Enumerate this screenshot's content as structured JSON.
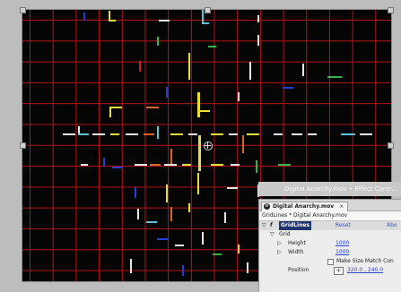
{
  "panel": {
    "title": "Digital Anarchy.mov • Effect Contr...",
    "tab_label": "Digital Anarchy.mov",
    "tab_icon": "⚙",
    "tab_close": "×",
    "breadcrumb": "GridLines * Digital Anarchy.mov",
    "effect_name": "GridLines",
    "reset_label": "Reset",
    "about_label": "Abo",
    "grid_label": "Grid",
    "height_label": "Height",
    "height_value": "1000",
    "width_label": "Width",
    "width_value": "1000",
    "make_size_label": "Make Size Match Con",
    "position_label": "Position",
    "position_value": "320.0 , 240.0",
    "twirl_open": "▽",
    "twirl_closed": "▷",
    "crosshair_glyph": "✛"
  },
  "colors": {
    "grid_line": "#b3141b",
    "canvas_bg": "#050505",
    "streak_yellow": "#e8de3a",
    "streak_cyan": "#5fc2d8",
    "streak_green": "#3ab34a",
    "streak_blue": "#2a3bd6",
    "streak_orange": "#d9642a",
    "streak_white": "#e6e6e6",
    "streak_red": "#c82020",
    "effect_highlight": "#20356e",
    "value_blue": "#2d46c8"
  }
}
